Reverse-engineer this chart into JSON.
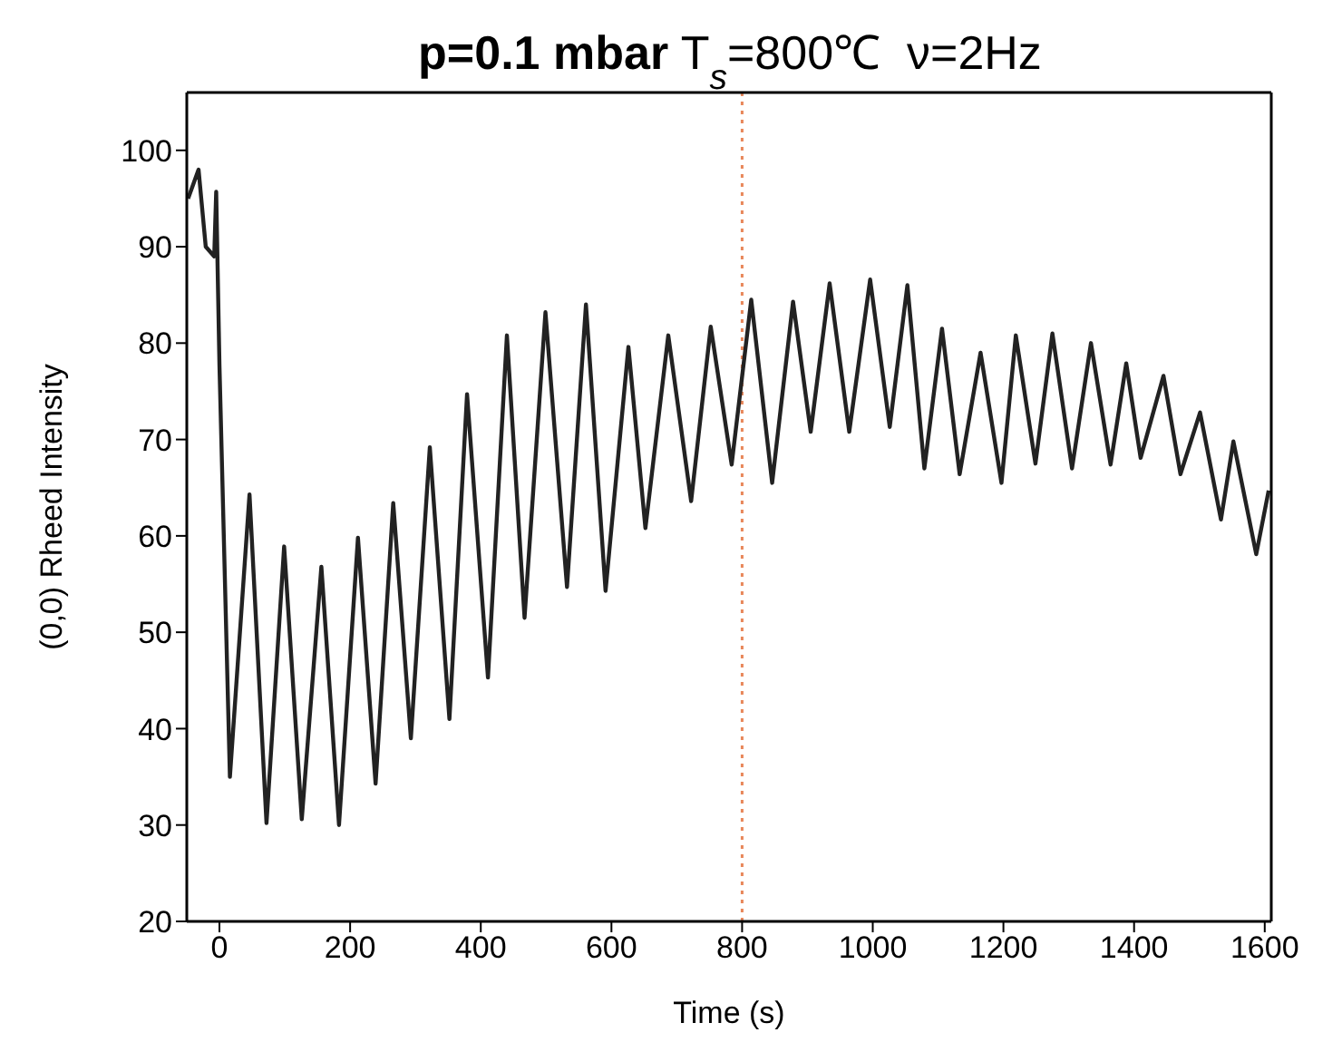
{
  "chart_data": {
    "type": "line",
    "title": "p=0.1 mbar T$_{s}$=800℃  ν=2Hz",
    "xlabel": "Time (s)",
    "ylabel": "(0,0) Rheed Intensity",
    "x": [
      -48,
      -32,
      -21,
      -8,
      -5,
      0,
      16,
      46,
      72,
      99,
      126,
      156,
      183,
      212,
      239,
      266,
      293,
      322,
      352,
      379,
      411,
      440,
      467,
      499,
      532,
      561,
      591,
      626,
      652,
      687,
      722,
      752,
      784,
      814,
      846,
      878,
      905,
      934,
      964,
      996,
      1026,
      1053,
      1079,
      1106,
      1133,
      1165,
      1197,
      1219,
      1249,
      1275,
      1305,
      1334,
      1364,
      1388,
      1410,
      1445,
      1471,
      1501,
      1533,
      1552,
      1587,
      1606
    ],
    "series": [
      {
        "color": "#222222",
        "values": [
          95,
          98,
          90,
          89,
          95.7,
          77.7,
          35,
          64.3,
          30.2,
          58.9,
          30.6,
          56.8,
          30,
          59.8,
          34.3,
          63.4,
          39,
          69.2,
          41,
          74.7,
          45.3,
          80.8,
          51.5,
          83.2,
          54.7,
          84,
          54.3,
          79.6,
          60.8,
          80.8,
          63.6,
          81.7,
          67.4,
          84.5,
          65.5,
          84.3,
          70.8,
          86.2,
          70.8,
          86.6,
          71.3,
          86,
          67,
          81.5,
          66.4,
          79,
          65.5,
          80.8,
          67.5,
          81,
          67,
          80,
          67.4,
          77.9,
          68.1,
          76.6,
          66.4,
          72.8,
          61.7,
          69.8,
          58.1,
          64.7
        ]
      }
    ],
    "xlim": [
      -50,
      1610
    ],
    "ylim": [
      20,
      106
    ],
    "xticks": [
      0,
      200,
      400,
      600,
      800,
      1000,
      1200,
      1400,
      1600
    ],
    "yticks": [
      20,
      30,
      40,
      50,
      60,
      70,
      80,
      90,
      100
    ],
    "ref_lines": [
      {
        "axis": "x",
        "value": 800,
        "color": "#e8875a",
        "line_style": "dotted"
      }
    ],
    "grid": false,
    "marker": "none",
    "line_style": "solid"
  }
}
